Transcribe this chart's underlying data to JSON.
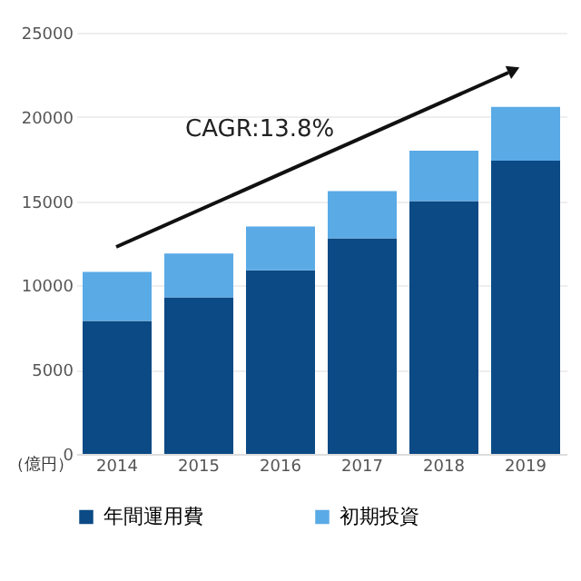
{
  "chart_data": {
    "type": "bar",
    "stacked": true,
    "ylabel": "（億円）",
    "categories": [
      "2014",
      "2015",
      "2016",
      "2017",
      "2018",
      "2019"
    ],
    "series": [
      {
        "name": "年間運用費",
        "color": "#0b4a84",
        "values": [
          7900,
          9300,
          10900,
          12800,
          15000,
          17400
        ]
      },
      {
        "name": "初期投資",
        "color": "#5aaae6",
        "values": [
          2900,
          2600,
          2600,
          2800,
          3000,
          3200
        ]
      }
    ],
    "ylim": [
      0,
      25000
    ],
    "yticks": [
      0,
      5000,
      10000,
      15000,
      20000,
      25000
    ],
    "grid": "y",
    "legend": "bottom",
    "annotations": [
      "CAGR:13.8%"
    ]
  }
}
